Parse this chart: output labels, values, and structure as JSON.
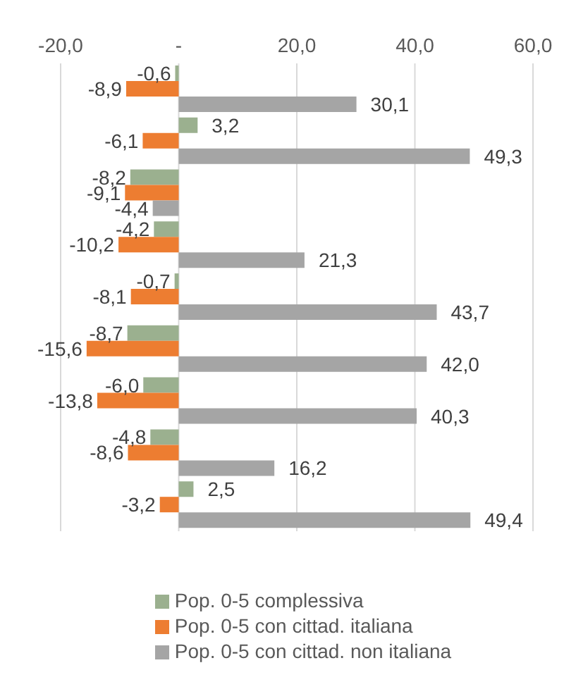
{
  "chart_data": {
    "type": "bar",
    "orientation": "horizontal",
    "categories": [
      null,
      null,
      null,
      null,
      null,
      null,
      null,
      null,
      null
    ],
    "series": [
      {
        "name": "Pop. 0-5 complessiva",
        "color": "#9bb08f",
        "values": [
          -0.6,
          3.2,
          -8.2,
          -4.2,
          -0.7,
          -8.7,
          -6.0,
          -4.8,
          2.5
        ],
        "value_labels": [
          "-0,6",
          "3,2",
          "-8,2",
          "-4,2",
          "-0,7",
          "-8,7",
          "-6,0",
          "-4,8",
          "2,5"
        ]
      },
      {
        "name": "Pop. 0-5 con cittad. italiana",
        "color": "#ed7d31",
        "values": [
          -8.9,
          -6.1,
          -9.1,
          -10.2,
          -8.1,
          -15.6,
          -13.8,
          -8.6,
          -3.2
        ],
        "value_labels": [
          "-8,9",
          "-6,1",
          "-9,1",
          "-10,2",
          "-8,1",
          "-15,6",
          "-13,8",
          "-8,6",
          "-3,2"
        ]
      },
      {
        "name": "Pop. 0-5 con cittad. non italiana",
        "color": "#a5a5a5",
        "values": [
          30.1,
          49.3,
          -4.4,
          21.3,
          43.7,
          42.0,
          40.3,
          16.2,
          49.4
        ],
        "value_labels": [
          "30,1",
          "49,3",
          "-4,4",
          "21,3",
          "43,7",
          "42,0",
          "40,3",
          "16,2",
          "49,4"
        ]
      }
    ],
    "xlim": [
      -20,
      60
    ],
    "xticks": [
      {
        "value": -20,
        "label": "-20,0"
      },
      {
        "value": 0,
        "label": "-"
      },
      {
        "value": 20,
        "label": "20,0"
      },
      {
        "value": 40,
        "label": "40,0"
      },
      {
        "value": 60,
        "label": "60,0"
      }
    ],
    "grid": "x",
    "legend": "bottom"
  }
}
